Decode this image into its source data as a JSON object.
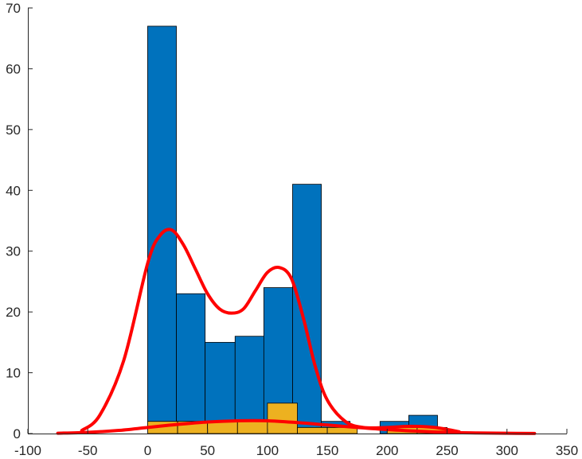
{
  "chart_data": {
    "type": "bar",
    "title": "",
    "xlabel": "",
    "ylabel": "",
    "xlim": [
      -100,
      350
    ],
    "ylim": [
      0,
      70
    ],
    "xticks": [
      -100,
      -50,
      0,
      50,
      100,
      150,
      200,
      250,
      300,
      350
    ],
    "yticks": [
      0,
      10,
      20,
      30,
      40,
      50,
      60,
      70
    ],
    "grid": false,
    "colors": {
      "series_a": "#0072bd",
      "series_b": "#edb120",
      "fit_curve": "#ff0000",
      "axis": "#262626"
    },
    "series": [
      {
        "kind": "histogram",
        "bins": [
          {
            "x0": 0,
            "x1": 24,
            "count": 67
          },
          {
            "x0": 24,
            "x1": 48,
            "count": 23
          },
          {
            "x0": 48,
            "x1": 73,
            "count": 15
          },
          {
            "x0": 73,
            "x1": 97,
            "count": 16
          },
          {
            "x0": 97,
            "x1": 121,
            "count": 24
          },
          {
            "x0": 121,
            "x1": 145,
            "count": 41
          },
          {
            "x0": 145,
            "x1": 169,
            "count": 2
          },
          {
            "x0": 169,
            "x1": 194,
            "count": 0
          },
          {
            "x0": 194,
            "x1": 218,
            "count": 2
          },
          {
            "x0": 218,
            "x1": 242,
            "count": 3
          }
        ]
      },
      {
        "kind": "histogram",
        "bins": [
          {
            "x0": 0,
            "x1": 25,
            "count": 2
          },
          {
            "x0": 25,
            "x1": 50,
            "count": 2
          },
          {
            "x0": 50,
            "x1": 75,
            "count": 2
          },
          {
            "x0": 75,
            "x1": 100,
            "count": 2
          },
          {
            "x0": 100,
            "x1": 125,
            "count": 5
          },
          {
            "x0": 125,
            "x1": 150,
            "count": 1
          },
          {
            "x0": 150,
            "x1": 175,
            "count": 1
          },
          {
            "x0": 175,
            "x1": 200,
            "count": 0
          },
          {
            "x0": 200,
            "x1": 225,
            "count": 1
          },
          {
            "x0": 225,
            "x1": 250,
            "count": 1
          }
        ]
      },
      {
        "kind": "line",
        "x": [
          -55,
          -40,
          -20,
          0,
          10,
          20,
          30,
          40,
          50,
          60,
          70,
          80,
          90,
          100,
          110,
          120,
          130,
          140,
          150,
          165,
          180,
          200,
          220,
          240,
          260
        ],
        "y": [
          0.5,
          3,
          12,
          28,
          32.5,
          33.5,
          31,
          27,
          23,
          20.5,
          19.8,
          20.5,
          23.5,
          26.5,
          27.3,
          25.5,
          19,
          11,
          5.5,
          2,
          1,
          1,
          1.2,
          1,
          0.3
        ]
      },
      {
        "kind": "line",
        "x": [
          -75,
          -50,
          -25,
          0,
          25,
          50,
          75,
          100,
          125,
          150,
          175,
          200,
          225,
          250,
          275,
          300,
          323
        ],
        "y": [
          0.05,
          0.2,
          0.5,
          1.0,
          1.5,
          1.9,
          2.1,
          2.1,
          1.8,
          1.4,
          1.0,
          0.65,
          0.4,
          0.2,
          0.1,
          0.05,
          0.02
        ]
      }
    ]
  }
}
